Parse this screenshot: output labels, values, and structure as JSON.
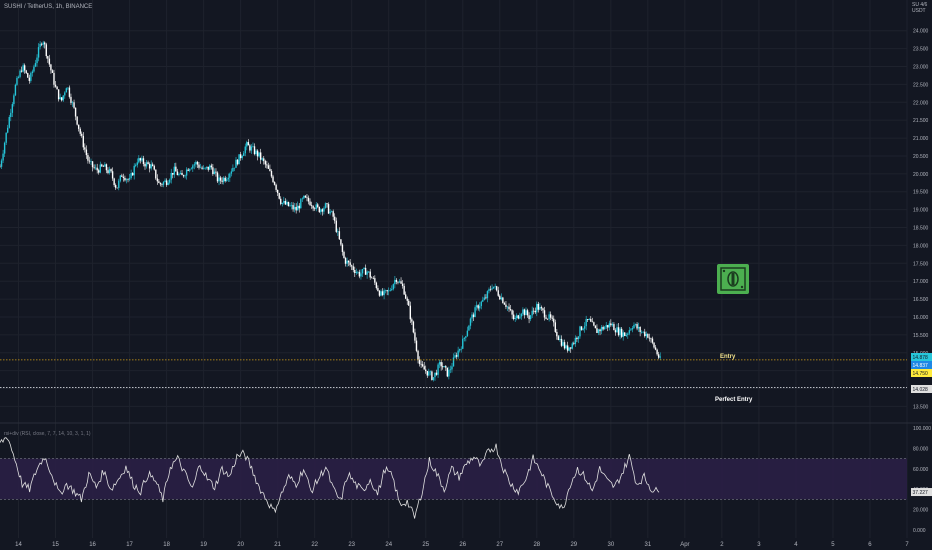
{
  "header": {
    "title": "SUSHI / TetherUS, 1h, BINANCE"
  },
  "axis": {
    "currency": "USDT",
    "currency_top": "SU 4/6",
    "price_ticks": [
      "24.000",
      "23.500",
      "23.000",
      "22.500",
      "22.000",
      "21.500",
      "21.000",
      "20.500",
      "20.000",
      "19.500",
      "19.000",
      "18.500",
      "18.000",
      "17.500",
      "17.000",
      "16.500",
      "16.000",
      "15.500",
      "15.000",
      "14.500",
      "14.000",
      "13.500"
    ],
    "time_ticks": [
      "14",
      "15",
      "16",
      "17",
      "18",
      "19",
      "20",
      "21",
      "22",
      "23",
      "24",
      "25",
      "26",
      "27",
      "28",
      "29",
      "30",
      "31",
      "Apr",
      "2",
      "3",
      "4",
      "5",
      "6",
      "7"
    ],
    "rsi_ticks": [
      "100.000",
      "80.000",
      "60.000",
      "40.000",
      "20.000",
      "0.000"
    ]
  },
  "price_tags": [
    {
      "text": "14.878",
      "value": 14.878,
      "color": "#26c6da"
    },
    {
      "text": "14.837",
      "value": 14.837,
      "color": "#1e88e5"
    },
    {
      "text": "14.750",
      "value": 14.75,
      "color": "#ffeb3b"
    },
    {
      "text": "14.028",
      "value": 14.028,
      "color": "#e0e0e0"
    }
  ],
  "rsi_tag": {
    "text": "37.227",
    "value": 37.227
  },
  "annotations": {
    "entry_label": "Entry",
    "perfect_entry_label": "Perfect Entry",
    "money_icon": "money-bill-icon"
  },
  "indicator": {
    "label": "rsi+div (RSI, close, 7, 7, 14, 10, 3, 1, 1)"
  },
  "colors": {
    "background": "#131722",
    "candle_up": "#26c6da",
    "candle_down": "#ffffff",
    "entry_line": "#d4a017",
    "perfect_line": "#d1d4dc",
    "rsi_band": "#2a1f45",
    "rsi_line": "#e0e0e0",
    "money_green": "#4caf50"
  },
  "chart_data": {
    "type": "candlestick",
    "title": "SUSHI / TetherUS, 1h, BINANCE",
    "ylim": [
      13.4,
      24.3
    ],
    "x_range_days": [
      13.5,
      38.0
    ],
    "price_path": [
      [
        13.5,
        20.2
      ],
      [
        13.7,
        21.3
      ],
      [
        13.9,
        22.4
      ],
      [
        14.1,
        23.0
      ],
      [
        14.3,
        22.6
      ],
      [
        14.5,
        23.3
      ],
      [
        14.65,
        23.8
      ],
      [
        14.8,
        23.2
      ],
      [
        15.0,
        22.4
      ],
      [
        15.15,
        22.0
      ],
      [
        15.3,
        22.5
      ],
      [
        15.5,
        21.8
      ],
      [
        15.7,
        21.0
      ],
      [
        15.9,
        20.3
      ],
      [
        16.1,
        20.1
      ],
      [
        16.3,
        20.2
      ],
      [
        16.5,
        20.0
      ],
      [
        16.65,
        19.6
      ],
      [
        16.8,
        20.0
      ],
      [
        17.0,
        19.8
      ],
      [
        17.2,
        20.4
      ],
      [
        17.4,
        20.3
      ],
      [
        17.6,
        20.2
      ],
      [
        17.8,
        19.7
      ],
      [
        18.0,
        19.8
      ],
      [
        18.2,
        20.1
      ],
      [
        18.4,
        19.9
      ],
      [
        18.6,
        20.2
      ],
      [
        18.8,
        20.3
      ],
      [
        19.0,
        20.1
      ],
      [
        19.2,
        20.2
      ],
      [
        19.4,
        19.8
      ],
      [
        19.6,
        19.9
      ],
      [
        19.8,
        20.2
      ],
      [
        20.0,
        20.5
      ],
      [
        20.15,
        20.8
      ],
      [
        20.3,
        20.7
      ],
      [
        20.5,
        20.5
      ],
      [
        20.7,
        20.2
      ],
      [
        20.9,
        19.8
      ],
      [
        21.1,
        19.2
      ],
      [
        21.3,
        19.1
      ],
      [
        21.5,
        19.0
      ],
      [
        21.7,
        19.3
      ],
      [
        21.9,
        19.2
      ],
      [
        22.1,
        19.0
      ],
      [
        22.3,
        19.1
      ],
      [
        22.5,
        18.8
      ],
      [
        22.65,
        18.2
      ],
      [
        22.8,
        17.6
      ],
      [
        23.0,
        17.4
      ],
      [
        23.2,
        17.2
      ],
      [
        23.4,
        17.3
      ],
      [
        23.6,
        17.0
      ],
      [
        23.8,
        16.6
      ],
      [
        24.0,
        16.7
      ],
      [
        24.2,
        17.1
      ],
      [
        24.4,
        16.8
      ],
      [
        24.55,
        16.2
      ],
      [
        24.7,
        15.4
      ],
      [
        24.85,
        14.6
      ],
      [
        25.0,
        14.5
      ],
      [
        25.2,
        14.3
      ],
      [
        25.4,
        14.7
      ],
      [
        25.6,
        14.4
      ],
      [
        25.8,
        14.9
      ],
      [
        26.0,
        15.3
      ],
      [
        26.2,
        15.9
      ],
      [
        26.4,
        16.3
      ],
      [
        26.6,
        16.5
      ],
      [
        26.8,
        16.9
      ],
      [
        27.0,
        16.6
      ],
      [
        27.2,
        16.3
      ],
      [
        27.4,
        15.9
      ],
      [
        27.6,
        16.2
      ],
      [
        27.8,
        16.0
      ],
      [
        28.0,
        16.3
      ],
      [
        28.2,
        16.1
      ],
      [
        28.4,
        15.9
      ],
      [
        28.6,
        15.4
      ],
      [
        28.8,
        15.1
      ],
      [
        29.0,
        15.3
      ],
      [
        29.2,
        15.7
      ],
      [
        29.4,
        15.9
      ],
      [
        29.6,
        15.6
      ],
      [
        29.8,
        15.7
      ],
      [
        30.0,
        15.8
      ],
      [
        30.2,
        15.6
      ],
      [
        30.4,
        15.5
      ],
      [
        30.6,
        15.8
      ],
      [
        30.8,
        15.6
      ],
      [
        31.0,
        15.5
      ],
      [
        31.2,
        15.1
      ],
      [
        31.35,
        14.75
      ]
    ],
    "entry_level": 14.8,
    "perfect_entry_level": 14.03,
    "rsi": {
      "ylim": [
        0,
        100
      ],
      "upper_band": 70,
      "lower_band": 30,
      "last": 37.227,
      "path": [
        [
          13.5,
          85
        ],
        [
          13.7,
          92
        ],
        [
          13.9,
          70
        ],
        [
          14.1,
          45
        ],
        [
          14.3,
          40
        ],
        [
          14.5,
          60
        ],
        [
          14.7,
          72
        ],
        [
          14.9,
          55
        ],
        [
          15.1,
          35
        ],
        [
          15.3,
          45
        ],
        [
          15.5,
          38
        ],
        [
          15.7,
          30
        ],
        [
          15.9,
          55
        ],
        [
          16.1,
          42
        ],
        [
          16.3,
          58
        ],
        [
          16.5,
          40
        ],
        [
          16.7,
          50
        ],
        [
          16.9,
          62
        ],
        [
          17.1,
          45
        ],
        [
          17.3,
          38
        ],
        [
          17.5,
          55
        ],
        [
          17.7,
          48
        ],
        [
          17.9,
          30
        ],
        [
          18.1,
          62
        ],
        [
          18.3,
          70
        ],
        [
          18.5,
          55
        ],
        [
          18.7,
          40
        ],
        [
          18.9,
          65
        ],
        [
          19.1,
          50
        ],
        [
          19.3,
          42
        ],
        [
          19.5,
          60
        ],
        [
          19.7,
          52
        ],
        [
          19.9,
          72
        ],
        [
          20.1,
          75
        ],
        [
          20.3,
          60
        ],
        [
          20.5,
          42
        ],
        [
          20.7,
          30
        ],
        [
          20.9,
          18
        ],
        [
          21.1,
          35
        ],
        [
          21.3,
          52
        ],
        [
          21.5,
          45
        ],
        [
          21.7,
          60
        ],
        [
          21.9,
          38
        ],
        [
          22.1,
          50
        ],
        [
          22.3,
          62
        ],
        [
          22.5,
          40
        ],
        [
          22.7,
          28
        ],
        [
          22.9,
          55
        ],
        [
          23.1,
          45
        ],
        [
          23.3,
          38
        ],
        [
          23.5,
          50
        ],
        [
          23.7,
          35
        ],
        [
          23.9,
          60
        ],
        [
          24.1,
          52
        ],
        [
          24.3,
          25
        ],
        [
          24.5,
          28
        ],
        [
          24.7,
          12
        ],
        [
          24.9,
          38
        ],
        [
          25.1,
          68
        ],
        [
          25.3,
          55
        ],
        [
          25.5,
          40
        ],
        [
          25.7,
          60
        ],
        [
          25.9,
          52
        ],
        [
          26.1,
          65
        ],
        [
          26.3,
          72
        ],
        [
          26.5,
          62
        ],
        [
          26.7,
          78
        ],
        [
          26.9,
          82
        ],
        [
          27.1,
          60
        ],
        [
          27.3,
          45
        ],
        [
          27.5,
          38
        ],
        [
          27.7,
          50
        ],
        [
          27.9,
          70
        ],
        [
          28.1,
          58
        ],
        [
          28.3,
          42
        ],
        [
          28.5,
          30
        ],
        [
          28.7,
          20
        ],
        [
          28.9,
          45
        ],
        [
          29.1,
          60
        ],
        [
          29.3,
          52
        ],
        [
          29.5,
          38
        ],
        [
          29.7,
          60
        ],
        [
          29.9,
          48
        ],
        [
          30.1,
          42
        ],
        [
          30.3,
          55
        ],
        [
          30.5,
          72
        ],
        [
          30.7,
          45
        ],
        [
          30.9,
          52
        ],
        [
          31.1,
          40
        ],
        [
          31.3,
          37
        ]
      ]
    }
  }
}
